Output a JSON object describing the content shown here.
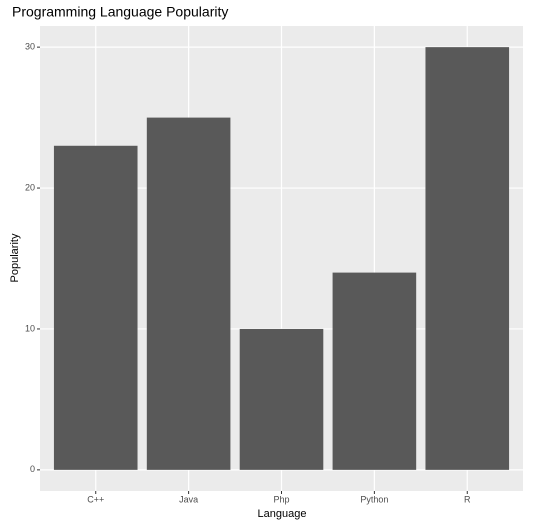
{
  "chart_data": {
    "type": "bar",
    "title": "Programming Language Popularity",
    "x_label": "Language",
    "y_label": "Popularity",
    "categories": [
      "C++",
      "Java",
      "Php",
      "Python",
      "R"
    ],
    "values": [
      23,
      25,
      10,
      14,
      30
    ],
    "color": "#595959",
    "ylim": [
      -1.5,
      31.5
    ],
    "yticks": [
      0,
      10,
      20,
      30
    ],
    "grid": true
  }
}
